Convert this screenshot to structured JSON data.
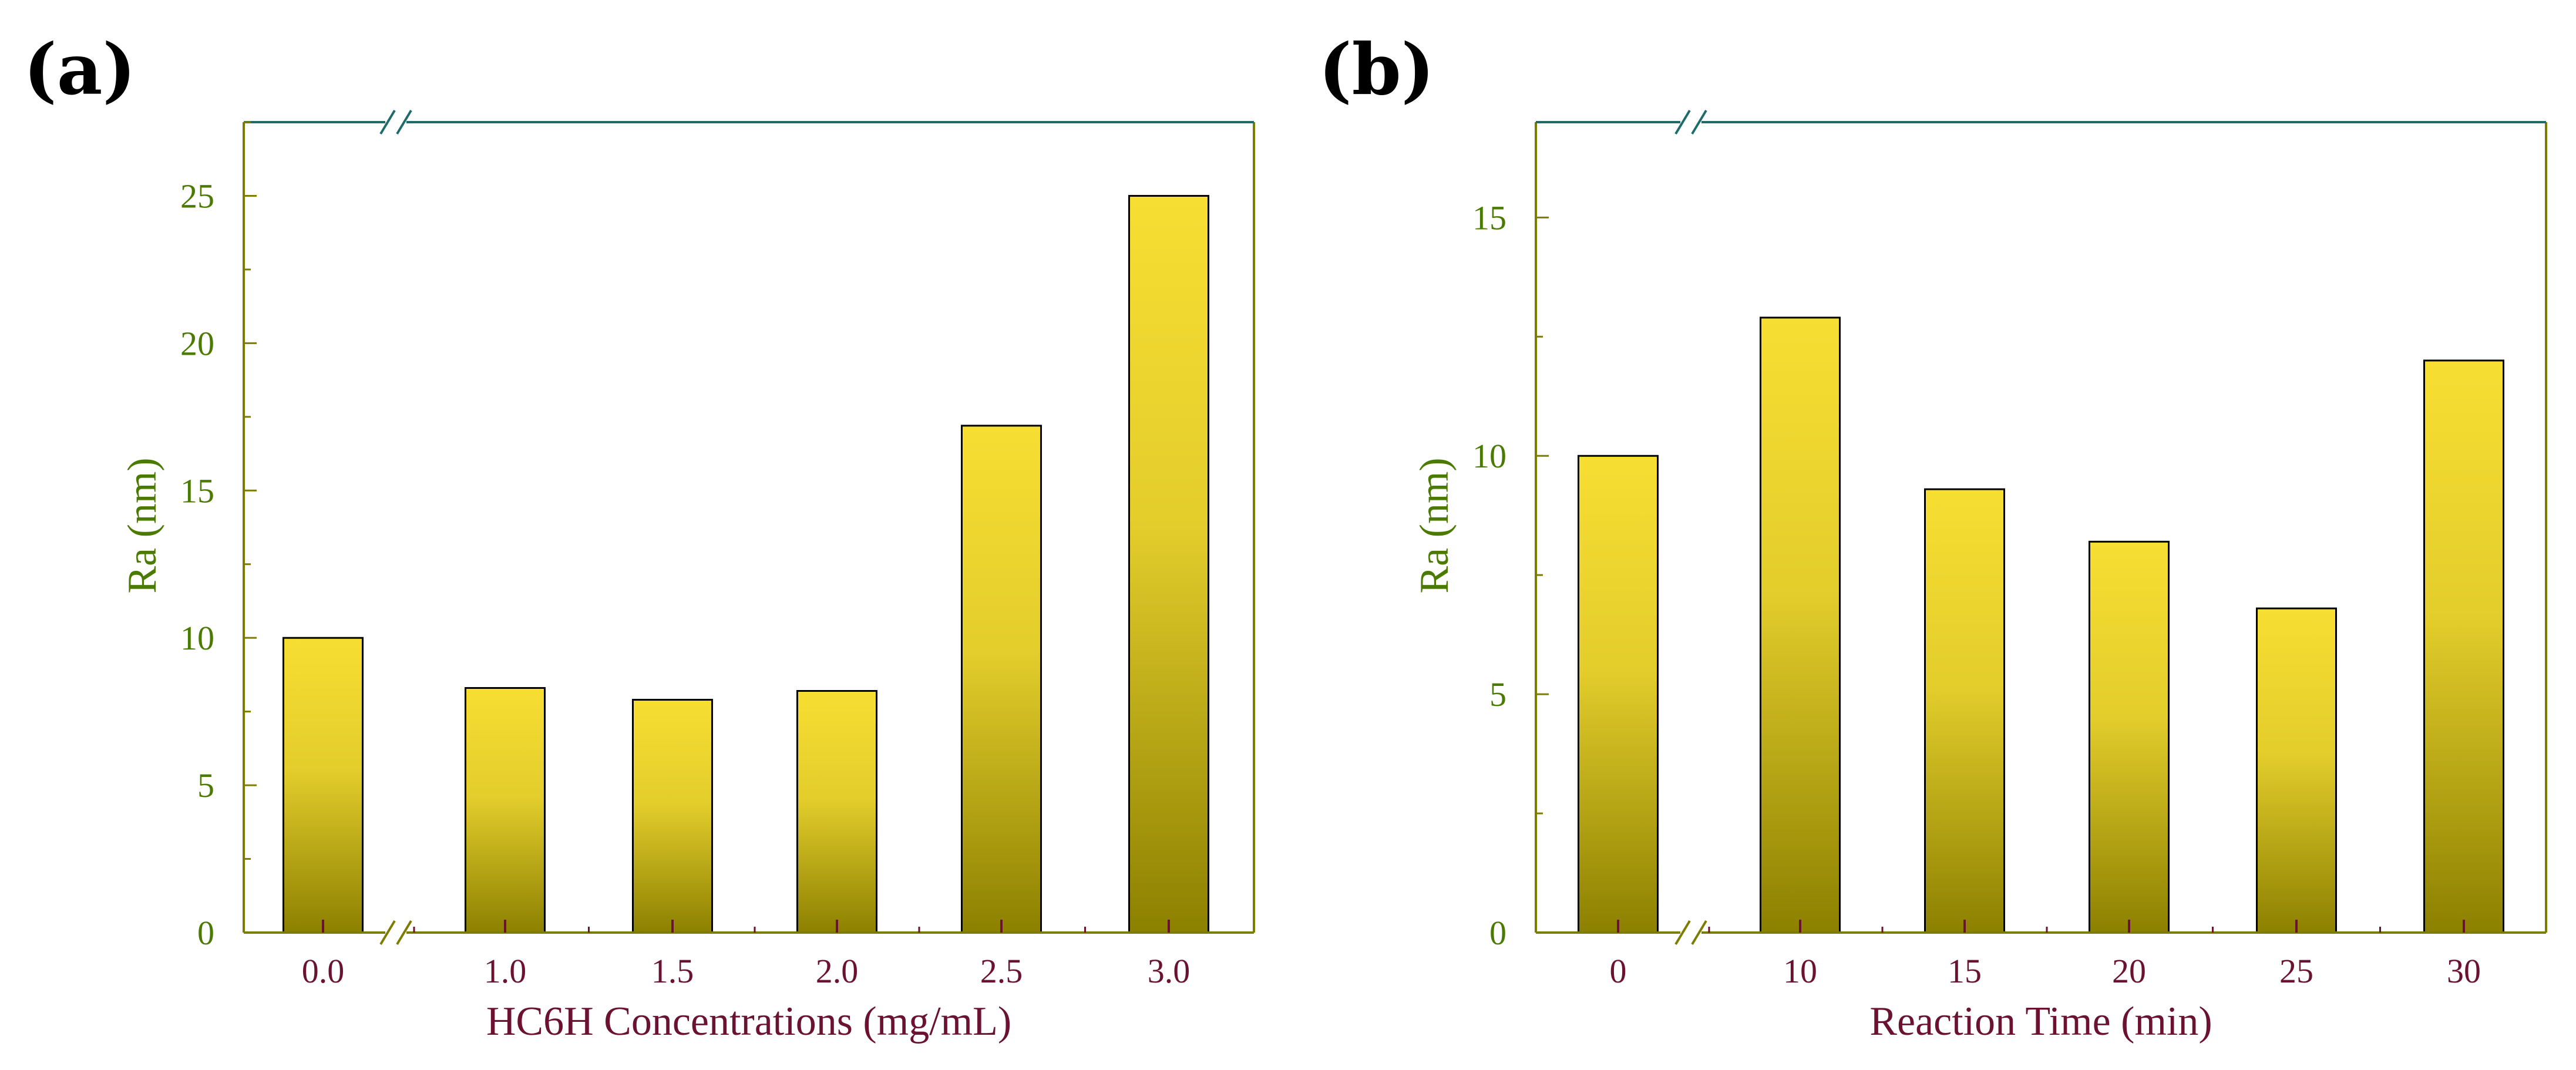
{
  "colors": {
    "left_axis": "#7c7c00",
    "top_axis": "#1f6b6b",
    "right_axis": "#7c7c00",
    "bottom_axis": "#7c7c00",
    "y_text": "#4a7a00",
    "x_text": "#6b1232",
    "tick_mark": "#6b1232",
    "bar_top": "#f7de32",
    "bar_mid": "#e3cd2c",
    "bar_bottom": "#8c8000",
    "bar_outline": "#000000"
  },
  "chart_data": [
    {
      "panel_label": "(a)",
      "type": "bar",
      "categories": [
        "0.0",
        "1.0",
        "1.5",
        "2.0",
        "2.5",
        "3.0"
      ],
      "values": [
        10.0,
        8.3,
        7.9,
        8.2,
        17.2,
        25.0
      ],
      "xlabel": "HC6H Concentrations (mg/mL)",
      "ylabel": "Ra (nm)",
      "ylim": [
        0,
        27.5
      ],
      "yticks": [
        0,
        5,
        10,
        15,
        20,
        25
      ],
      "axis_break_after_index": 0,
      "grid": false
    },
    {
      "panel_label": "(b)",
      "type": "bar",
      "categories": [
        "0",
        "10",
        "15",
        "20",
        "25",
        "30"
      ],
      "values": [
        10.0,
        12.9,
        9.3,
        8.2,
        6.8,
        12.0
      ],
      "xlabel": "Reaction Time (min)",
      "ylabel": "Ra (nm)",
      "ylim": [
        0,
        17
      ],
      "yticks": [
        0,
        5,
        10,
        15
      ],
      "axis_break_after_index": 0,
      "grid": false
    }
  ]
}
